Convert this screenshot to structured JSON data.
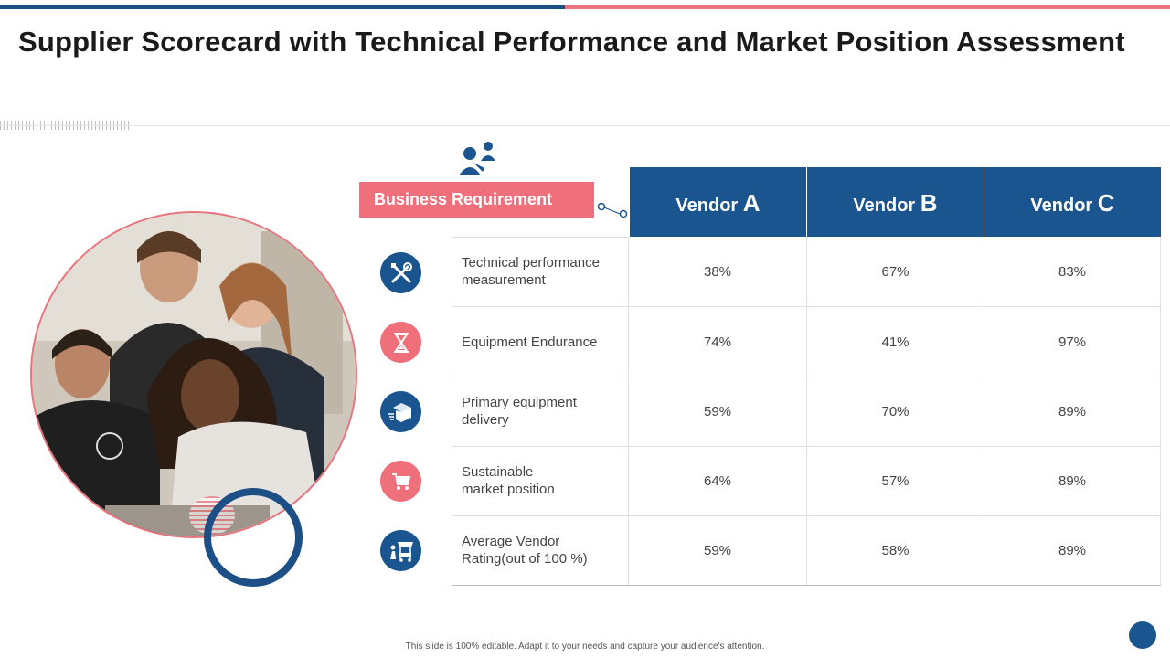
{
  "title": "Supplier Scorecard with Technical Performance and Market Position Assessment",
  "business_requirement_label": "Business Requirement",
  "vendors": [
    {
      "prefix": "Vendor",
      "letter": "A"
    },
    {
      "prefix": "Vendor",
      "letter": "B"
    },
    {
      "prefix": "Vendor",
      "letter": "C"
    }
  ],
  "rows": [
    {
      "icon": "tools-icon",
      "icon_color": "blue",
      "label": "Technical performance measurement",
      "values": [
        "38%",
        "67%",
        "83%"
      ]
    },
    {
      "icon": "hourglass-icon",
      "icon_color": "pink",
      "label": "Equipment Endurance",
      "values": [
        "74%",
        "41%",
        "97%"
      ]
    },
    {
      "icon": "delivery-box-icon",
      "icon_color": "blue",
      "label": "Primary equipment delivery",
      "values": [
        "59%",
        "70%",
        "89%"
      ]
    },
    {
      "icon": "shopping-cart-icon",
      "icon_color": "pink",
      "label": "Sustainable market position",
      "values": [
        "64%",
        "57%",
        "89%"
      ]
    },
    {
      "icon": "vendor-stall-icon",
      "icon_color": "blue",
      "label": "Average Vendor Rating(out of 100 %)",
      "values": [
        "59%",
        "58%",
        "89%"
      ]
    }
  ],
  "footer": "This slide is 100% editable. Adapt it to your needs and capture your audience's attention.",
  "colors": {
    "accent_blue": "#1b5590",
    "accent_pink": "#ef6f7a"
  }
}
